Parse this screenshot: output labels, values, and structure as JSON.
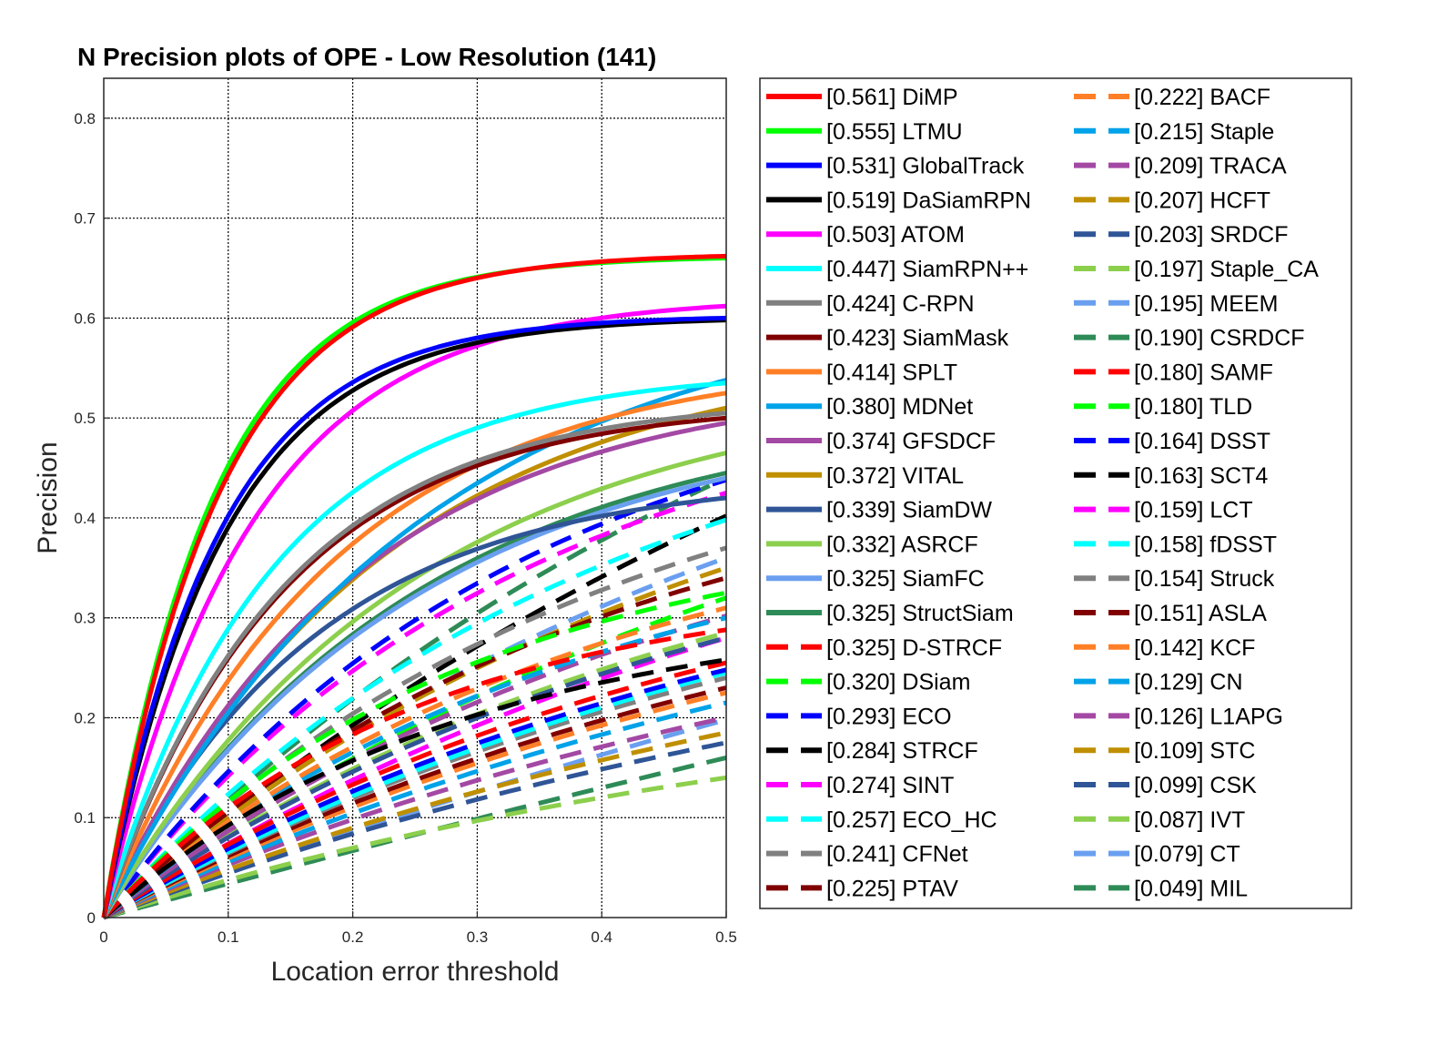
{
  "chart_data": {
    "type": "line",
    "title": "N Precision plots of OPE - Low Resolution (141)",
    "xlabel": "Location error threshold",
    "ylabel": "Precision",
    "xlim": [
      0,
      0.5
    ],
    "ylim": [
      0,
      0.84
    ],
    "xticks": [
      "0",
      "0.1",
      "0.2",
      "0.3",
      "0.4",
      "0.5"
    ],
    "yticks": [
      "0",
      "0.1",
      "0.2",
      "0.3",
      "0.4",
      "0.5",
      "0.6",
      "0.7",
      "0.8"
    ],
    "grid": true,
    "legend_position": "right",
    "series": [
      {
        "name": "[0.561] DiMP",
        "color": "#ff0000",
        "dash": "solid",
        "end": 0.662,
        "k": 11
      },
      {
        "name": "[0.555] LTMU",
        "color": "#00ff00",
        "dash": "solid",
        "end": 0.66,
        "k": 11.5
      },
      {
        "name": "[0.531] GlobalTrack",
        "color": "#0000ff",
        "dash": "solid",
        "end": 0.6,
        "k": 11
      },
      {
        "name": "[0.519] DaSiamRPN",
        "color": "#000000",
        "dash": "solid",
        "end": 0.598,
        "k": 10.5
      },
      {
        "name": "[0.503] ATOM",
        "color": "#ff00ff",
        "dash": "solid",
        "end": 0.612,
        "k": 8.5
      },
      {
        "name": "[0.447] SiamRPN++",
        "color": "#00ffff",
        "dash": "solid",
        "end": 0.535,
        "k": 7.5
      },
      {
        "name": "[0.424] C-RPN",
        "color": "#808080",
        "dash": "solid",
        "end": 0.505,
        "k": 7
      },
      {
        "name": "[0.423] SiamMask",
        "color": "#800000",
        "dash": "solid",
        "end": 0.5,
        "k": 7
      },
      {
        "name": "[0.414] SPLT",
        "color": "#ff7f27",
        "dash": "solid",
        "end": 0.525,
        "k": 5.5
      },
      {
        "name": "[0.380] MDNet",
        "color": "#00a2e8",
        "dash": "solid",
        "end": 0.538,
        "k": 4
      },
      {
        "name": "[0.374] GFSDCF",
        "color": "#a349a4",
        "dash": "solid",
        "end": 0.495,
        "k": 5
      },
      {
        "name": "[0.372] VITAL",
        "color": "#bf8f00",
        "dash": "solid",
        "end": 0.51,
        "k": 4.5
      },
      {
        "name": "[0.339] SiamDW",
        "color": "#2f5597",
        "dash": "solid",
        "end": 0.42,
        "k": 6
      },
      {
        "name": "[0.332] ASRCF",
        "color": "#8ccf4d",
        "dash": "solid",
        "end": 0.465,
        "k": 4
      },
      {
        "name": "[0.325] SiamFC",
        "color": "#6a9ff0",
        "dash": "solid",
        "end": 0.44,
        "k": 4
      },
      {
        "name": "[0.325] StructSiam",
        "color": "#2e8b57",
        "dash": "solid",
        "end": 0.445,
        "k": 4
      },
      {
        "name": "[0.325] D-STRCF",
        "color": "#ff0000",
        "dash": "dash",
        "end": 0.288,
        "k": 4
      },
      {
        "name": "[0.320] DSiam",
        "color": "#00ff00",
        "dash": "dash",
        "end": 0.325,
        "k": 3.5
      },
      {
        "name": "[0.293] ECO",
        "color": "#0000ff",
        "dash": "dash",
        "end": 0.438,
        "k": 3
      },
      {
        "name": "[0.284] STRCF",
        "color": "#000000",
        "dash": "dash",
        "end": 0.258,
        "k": 3.5
      },
      {
        "name": "[0.274] SINT",
        "color": "#ff00ff",
        "dash": "dash",
        "end": 0.425,
        "k": 3
      },
      {
        "name": "[0.257] ECO_HC",
        "color": "#00ffff",
        "dash": "dash",
        "end": 0.398,
        "k": 2.5
      },
      {
        "name": "[0.241] CFNet",
        "color": "#808080",
        "dash": "dash",
        "end": 0.37,
        "k": 2.5
      },
      {
        "name": "[0.225] PTAV",
        "color": "#800000",
        "dash": "dash",
        "end": 0.34,
        "k": 2.5
      },
      {
        "name": "[0.222] BACF",
        "color": "#ff7f27",
        "dash": "dash",
        "end": 0.31,
        "k": 2.5
      },
      {
        "name": "[0.215] Staple",
        "color": "#00a2e8",
        "dash": "dash",
        "end": 0.3,
        "k": 2.5
      },
      {
        "name": "[0.209] TRACA",
        "color": "#a349a4",
        "dash": "dash",
        "end": 0.302,
        "k": 2
      },
      {
        "name": "[0.207] HCFT",
        "color": "#bf8f00",
        "dash": "dash",
        "end": 0.35,
        "k": 2
      },
      {
        "name": "[0.203] SRDCF",
        "color": "#2f5597",
        "dash": "dash",
        "end": 0.28,
        "k": 2
      },
      {
        "name": "[0.197] Staple_CA",
        "color": "#8ccf4d",
        "dash": "dash",
        "end": 0.285,
        "k": 2
      },
      {
        "name": "[0.195] MEEM",
        "color": "#6a9ff0",
        "dash": "dash",
        "end": 0.36,
        "k": 1.8
      },
      {
        "name": "[0.190] CSRDCF",
        "color": "#2e8b57",
        "dash": "dash",
        "end": 0.44,
        "k": 1.6
      },
      {
        "name": "[0.180] SAMF",
        "color": "#ff0000",
        "dash": "dash",
        "end": 0.255,
        "k": 2
      },
      {
        "name": "[0.180] TLD",
        "color": "#00ff00",
        "dash": "dash",
        "end": 0.32,
        "k": 1.6
      },
      {
        "name": "[0.164] DSST",
        "color": "#0000ff",
        "dash": "dash",
        "end": 0.248,
        "k": 1.8
      },
      {
        "name": "[0.163] SCT4",
        "color": "#000000",
        "dash": "dash",
        "end": 0.402,
        "k": 1.3
      },
      {
        "name": "[0.159] LCT",
        "color": "#ff00ff",
        "dash": "dash",
        "end": 0.28,
        "k": 1.5
      },
      {
        "name": "[0.158] fDSST",
        "color": "#00ffff",
        "dash": "dash",
        "end": 0.245,
        "k": 1.6
      },
      {
        "name": "[0.154] Struck",
        "color": "#808080",
        "dash": "dash",
        "end": 0.24,
        "k": 1.6
      },
      {
        "name": "[0.151] ASLA",
        "color": "#800000",
        "dash": "dash",
        "end": 0.23,
        "k": 1.6
      },
      {
        "name": "[0.142] KCF",
        "color": "#ff7f27",
        "dash": "dash",
        "end": 0.225,
        "k": 1.5
      },
      {
        "name": "[0.129] CN",
        "color": "#00a2e8",
        "dash": "dash",
        "end": 0.215,
        "k": 1.4
      },
      {
        "name": "[0.126] L1APG",
        "color": "#a349a4",
        "dash": "dash",
        "end": 0.2,
        "k": 1.5
      },
      {
        "name": "[0.109] STC",
        "color": "#bf8f00",
        "dash": "dash",
        "end": 0.185,
        "k": 1.4
      },
      {
        "name": "[0.099] CSK",
        "color": "#2f5597",
        "dash": "dash",
        "end": 0.175,
        "k": 1.3
      },
      {
        "name": "[0.087] IVT",
        "color": "#8ccf4d",
        "dash": "dash",
        "end": 0.14,
        "k": 1.6
      },
      {
        "name": "[0.079] CT",
        "color": "#6a9ff0",
        "dash": "dash",
        "end": 0.198,
        "k": 0.6
      },
      {
        "name": "[0.049] MIL",
        "color": "#2e8b57",
        "dash": "dash",
        "end": 0.16,
        "k": 0.3
      }
    ]
  }
}
